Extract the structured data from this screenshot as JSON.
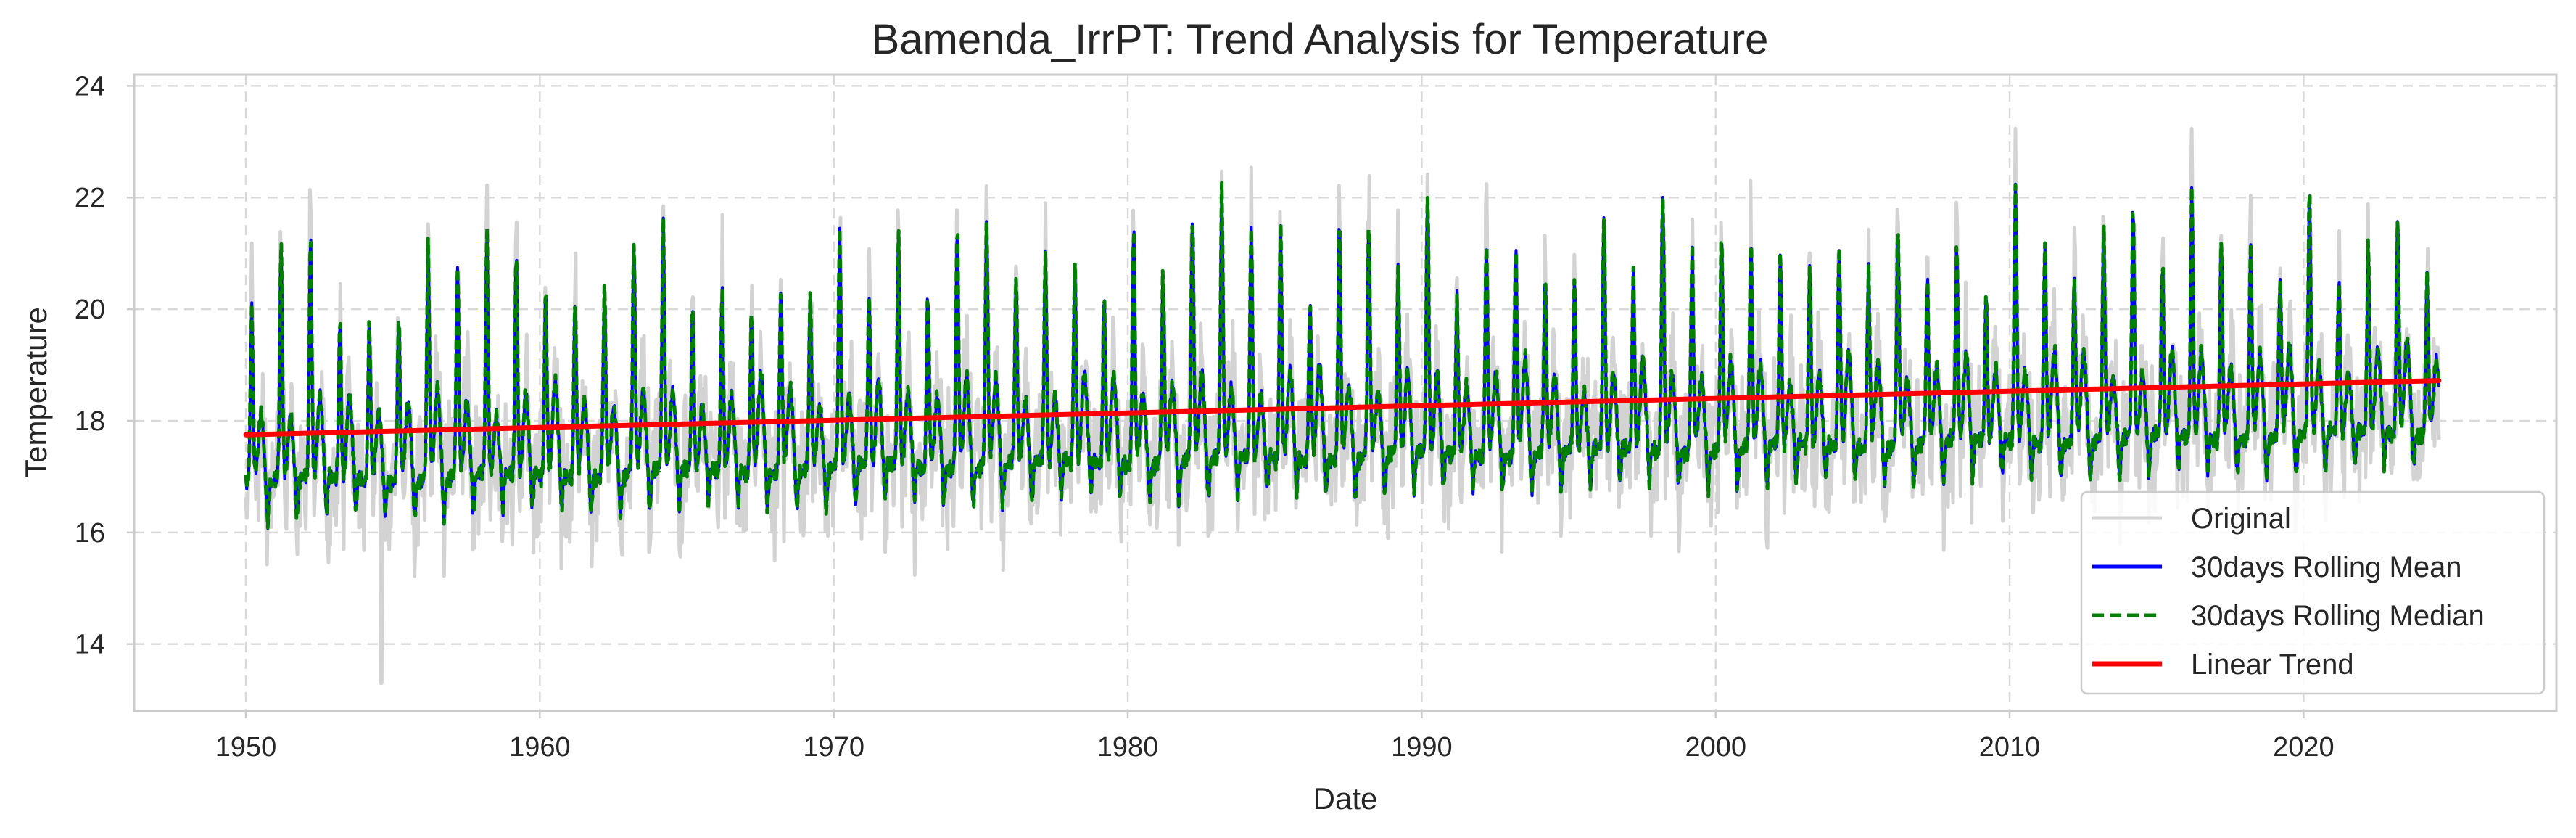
{
  "chart_data": {
    "type": "line",
    "title": "Bamenda_IrrPT: Trend Analysis for Temperature",
    "xlabel": "Date",
    "ylabel": "Temperature",
    "xlim": [
      1946.2,
      2028.6
    ],
    "ylim": [
      12.8,
      24.2
    ],
    "xticks": [
      1950,
      1960,
      1970,
      1980,
      1990,
      2000,
      2010,
      2020
    ],
    "yticks": [
      14,
      16,
      18,
      20,
      22,
      24
    ],
    "grid": true,
    "legend_position": "lower-right",
    "data_range": [
      1950.0,
      2024.6
    ],
    "series": [
      {
        "name": "Original",
        "style": "solid",
        "color": "#d3d3d3"
      },
      {
        "name": "30days Rolling Mean",
        "style": "solid",
        "color": "#0000ff"
      },
      {
        "name": "30days Rolling Median",
        "style": "dashed",
        "color": "#008000"
      },
      {
        "name": "Linear Trend",
        "style": "solid",
        "color": "#ff0000",
        "start": [
          1950.0,
          17.75
        ],
        "end": [
          2024.6,
          18.72
        ]
      }
    ],
    "seasonal_pattern": {
      "baseline": 16.9,
      "annual_peak": 20.6,
      "secondary_peak": 18.3,
      "secondary_trough": 17.3,
      "baseline_trend_per_decade": 0.12
    },
    "notable_points": [
      {
        "x": 1954.6,
        "y": 13.3
      },
      {
        "x": 1983.2,
        "y": 22.1
      },
      {
        "x": 1990.3,
        "y": 22.1
      },
      {
        "x": 1998.2,
        "y": 22.2
      },
      {
        "x": 2010.2,
        "y": 22.3
      },
      {
        "x": 2016.0,
        "y": 22.2
      },
      {
        "x": 2020.3,
        "y": 22.1
      },
      {
        "x": 2023.9,
        "y": 21.8
      }
    ]
  },
  "colors": {
    "axes_edge": "#cccccc",
    "grid": "#d9d9d9",
    "text": "#262626"
  }
}
